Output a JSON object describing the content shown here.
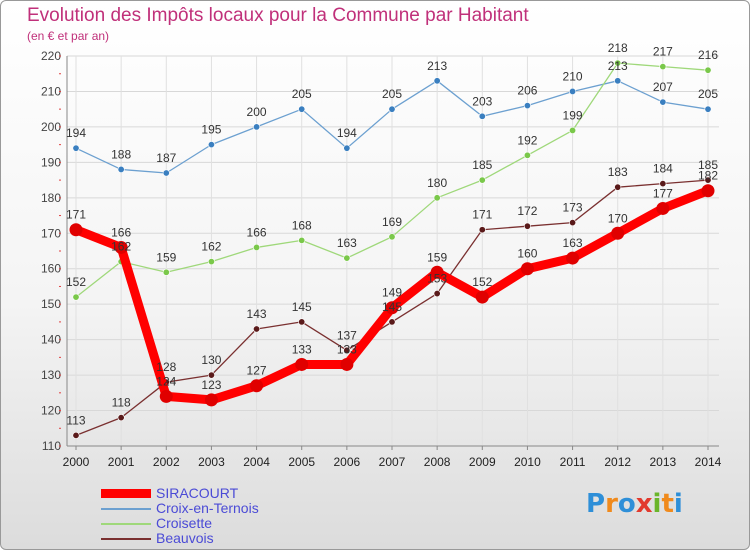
{
  "title": "Evolution des Impôts locaux pour la Commune par Habitant",
  "subtitle": "(en € et par an)",
  "logo": {
    "text": "Proxiti",
    "letters": [
      {
        "ch": "P",
        "color": "#2e8fd8"
      },
      {
        "ch": "r",
        "color": "#f08a1c"
      },
      {
        "ch": "o",
        "color": "#2e8fd8"
      },
      {
        "ch": "x",
        "color": "#e23a2e"
      },
      {
        "ch": "i",
        "color": "#6ab52a"
      },
      {
        "ch": "t",
        "color": "#f08a1c"
      },
      {
        "ch": "i",
        "color": "#2e8fd8"
      }
    ]
  },
  "chart_data": {
    "type": "line",
    "title": "Evolution des Impôts locaux pour la Commune par Habitant",
    "subtitle": "(en € et par an)",
    "xlabel": "",
    "ylabel": "",
    "x": [
      "2000",
      "2001",
      "2002",
      "2003",
      "2004",
      "2005",
      "2006",
      "2007",
      "2008",
      "2009",
      "2010",
      "2011",
      "2012",
      "2013",
      "2014"
    ],
    "ylim": [
      110,
      220
    ],
    "yticks": [
      110,
      120,
      130,
      140,
      150,
      160,
      170,
      180,
      190,
      200,
      210,
      220
    ],
    "grid": true,
    "legend_position": "bottom-left",
    "series": [
      {
        "name": "SIRACOURT",
        "color": "#ff0000",
        "marker": "#e00000",
        "thick": true,
        "values": [
          171,
          166,
          124,
          123,
          127,
          133,
          133,
          149,
          159,
          152,
          160,
          163,
          170,
          177,
          182
        ],
        "labels": [
          "171",
          "166",
          "124",
          "123",
          "127",
          "133",
          "133",
          "149",
          "159",
          "152",
          "160",
          "163",
          "170",
          "177",
          "182"
        ]
      },
      {
        "name": "Croix-en-Ternois",
        "color": "#6ca0d0",
        "marker": "#3a7fc0",
        "thick": false,
        "values": [
          194,
          188,
          187,
          195,
          200,
          205,
          194,
          205,
          213,
          203,
          206,
          210,
          213,
          207,
          205
        ],
        "labels": [
          "194",
          "188",
          "187",
          "195",
          "200",
          "205",
          "194",
          "205",
          "213",
          "203",
          "206",
          "210",
          "213",
          "207",
          "205"
        ]
      },
      {
        "name": "Croisette",
        "color": "#9fd87a",
        "marker": "#7ac84a",
        "thick": false,
        "values": [
          152,
          162,
          159,
          162,
          166,
          168,
          163,
          169,
          180,
          185,
          192,
          199,
          218,
          217,
          216
        ],
        "labels": [
          "152",
          "162",
          "159",
          "162",
          "166",
          "168",
          "163",
          "169",
          "180",
          "185",
          "192",
          "199",
          "218",
          "217",
          "216"
        ]
      },
      {
        "name": "Beauvois",
        "color": "#7a3030",
        "marker": "#5a1a1a",
        "thick": false,
        "values": [
          113,
          118,
          128,
          130,
          143,
          145,
          137,
          145,
          153,
          171,
          172,
          173,
          183,
          184,
          185
        ],
        "labels": [
          "113",
          "118",
          "128",
          "130",
          "143",
          "145",
          "137",
          "145",
          "153",
          "171",
          "172",
          "173",
          "183",
          "184",
          "185"
        ]
      }
    ]
  }
}
